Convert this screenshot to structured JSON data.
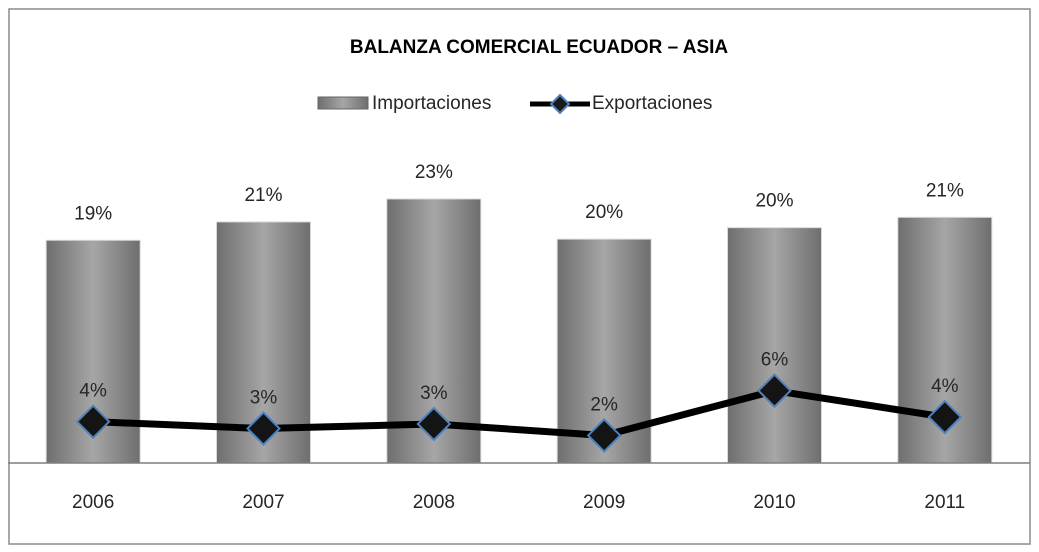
{
  "chart_data": {
    "type": "bar+line",
    "title": "BALANZA COMERCIAL ECUADOR – ASIA",
    "categories": [
      "2006",
      "2007",
      "2008",
      "2009",
      "2010",
      "2011"
    ],
    "series": [
      {
        "name": "Importaciones",
        "type": "bar",
        "color": "#8c8c8c",
        "values": [
          19.4,
          21.0,
          23.0,
          19.5,
          20.5,
          21.4
        ],
        "value_labels": [
          "19%",
          "21%",
          "23%",
          "20%",
          "20%",
          "21%"
        ]
      },
      {
        "name": "Exportaciones",
        "type": "line",
        "color": "#000000",
        "values": [
          3.6,
          3.0,
          3.4,
          2.4,
          6.3,
          4.0
        ],
        "value_labels": [
          "4%",
          "3%",
          "3%",
          "2%",
          "6%",
          "4%"
        ]
      }
    ],
    "legend": "top"
  }
}
